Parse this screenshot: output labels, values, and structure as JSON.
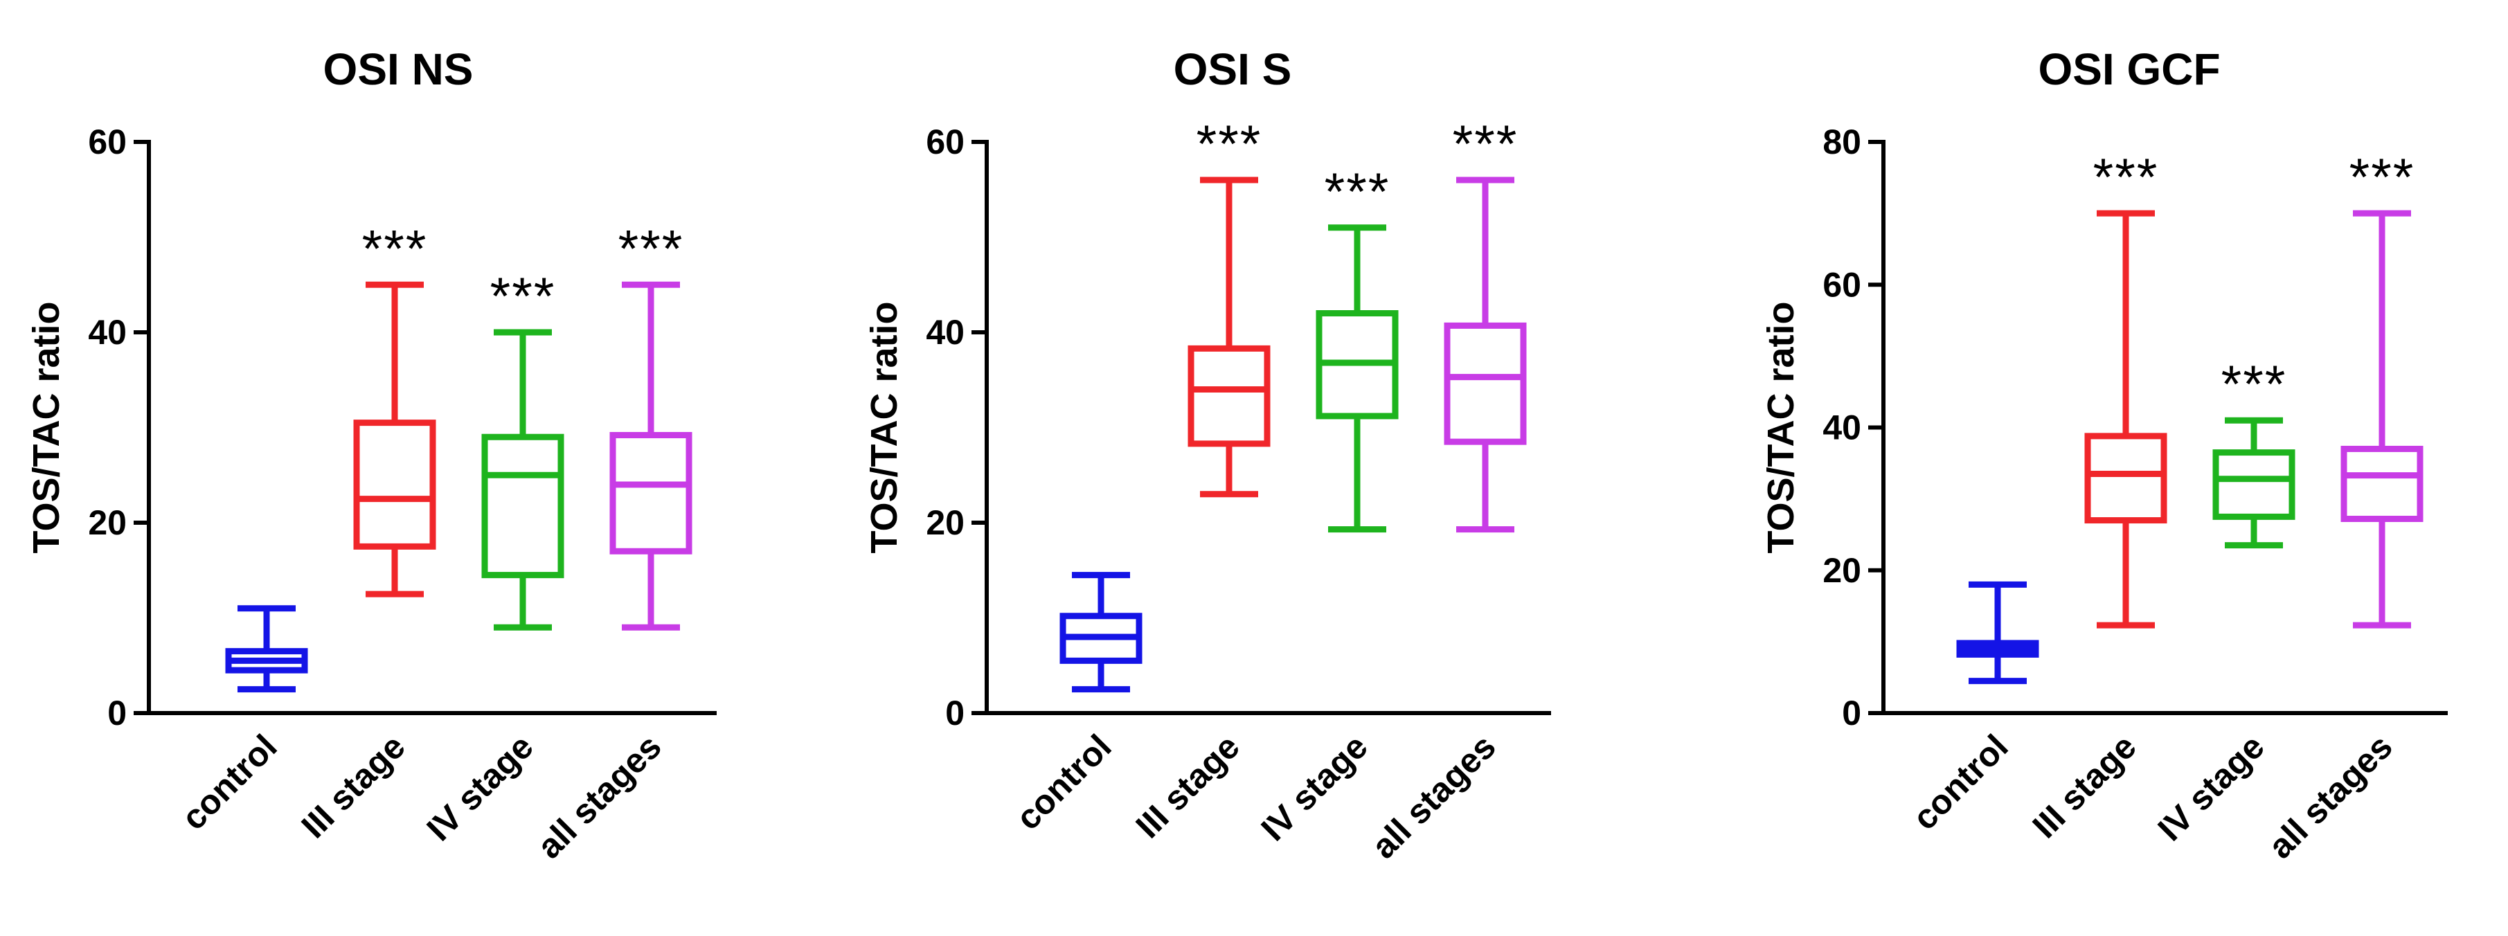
{
  "chart_data": [
    {
      "type": "box",
      "title": "OSI NS",
      "ylabel": "TOS/TAC ratio",
      "ylim": [
        0,
        60
      ],
      "yticks": [
        0,
        20,
        40,
        60
      ],
      "categories": [
        "control",
        "III stage",
        "IV stage",
        "all stages"
      ],
      "colors": [
        "#1414e6",
        "#f0262a",
        "#1eb41e",
        "#c83ce6"
      ],
      "boxes": [
        {
          "min": 2.5,
          "q1": 4.5,
          "median": 5.5,
          "q3": 6.5,
          "max": 11
        },
        {
          "min": 12.5,
          "q1": 17.5,
          "median": 22.5,
          "q3": 30.5,
          "max": 45
        },
        {
          "min": 9,
          "q1": 14.5,
          "median": 25,
          "q3": 29,
          "max": 40
        },
        {
          "min": 9,
          "q1": 17,
          "median": 24,
          "q3": 29.2,
          "max": 45
        }
      ],
      "significance": [
        "",
        "***",
        "***",
        "***"
      ]
    },
    {
      "type": "box",
      "title": "OSI S",
      "ylabel": "TOS/TAC ratio",
      "ylim": [
        0,
        60
      ],
      "yticks": [
        0,
        20,
        40,
        60
      ],
      "categories": [
        "control",
        "III stage",
        "IV stage",
        "all stages"
      ],
      "colors": [
        "#1414e6",
        "#f0262a",
        "#1eb41e",
        "#c83ce6"
      ],
      "boxes": [
        {
          "min": 2.5,
          "q1": 5.5,
          "median": 8,
          "q3": 10.2,
          "max": 14.5
        },
        {
          "min": 23,
          "q1": 28.3,
          "median": 34,
          "q3": 38.3,
          "max": 56
        },
        {
          "min": 19.3,
          "q1": 31.2,
          "median": 36.8,
          "q3": 42,
          "max": 51
        },
        {
          "min": 19.3,
          "q1": 28.5,
          "median": 35.3,
          "q3": 40.7,
          "max": 56
        }
      ],
      "significance": [
        "",
        "***",
        "***",
        "***"
      ]
    },
    {
      "type": "box",
      "title": "OSI GCF",
      "ylabel": "TOS/TAC ratio",
      "ylim": [
        0,
        80
      ],
      "yticks": [
        0,
        20,
        40,
        60,
        80
      ],
      "categories": [
        "control",
        "III stage",
        "IV stage",
        "all stages"
      ],
      "colors": [
        "#1414e6",
        "#f0262a",
        "#1eb41e",
        "#c83ce6"
      ],
      "boxes": [
        {
          "min": 4.5,
          "q1": 8.2,
          "median": 9,
          "q3": 9.8,
          "max": 18
        },
        {
          "min": 12.3,
          "q1": 27,
          "median": 33.5,
          "q3": 38.8,
          "max": 70
        },
        {
          "min": 23.5,
          "q1": 27.5,
          "median": 32.8,
          "q3": 36.5,
          "max": 41
        },
        {
          "min": 12.3,
          "q1": 27.2,
          "median": 33.3,
          "q3": 37,
          "max": 70
        }
      ],
      "significance": [
        "",
        "***",
        "***",
        "***"
      ]
    }
  ]
}
